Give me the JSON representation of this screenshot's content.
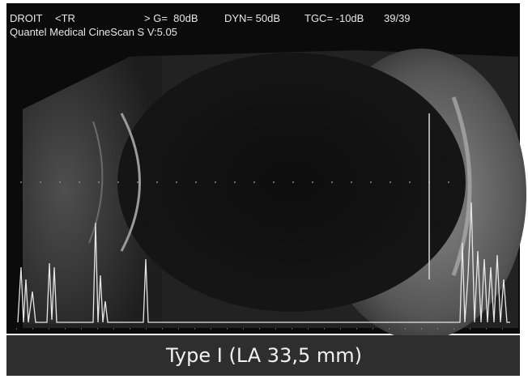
{
  "header": {
    "line1": [
      "DROIT",
      "<TR",
      "> G=  80dB",
      "DYN= 50dB",
      "TGC= -10dB",
      "39/39"
    ],
    "line2": "Quantel Medical CineScan S V:5.05"
  },
  "caption": "Type I (LA 33,5 mm)"
}
